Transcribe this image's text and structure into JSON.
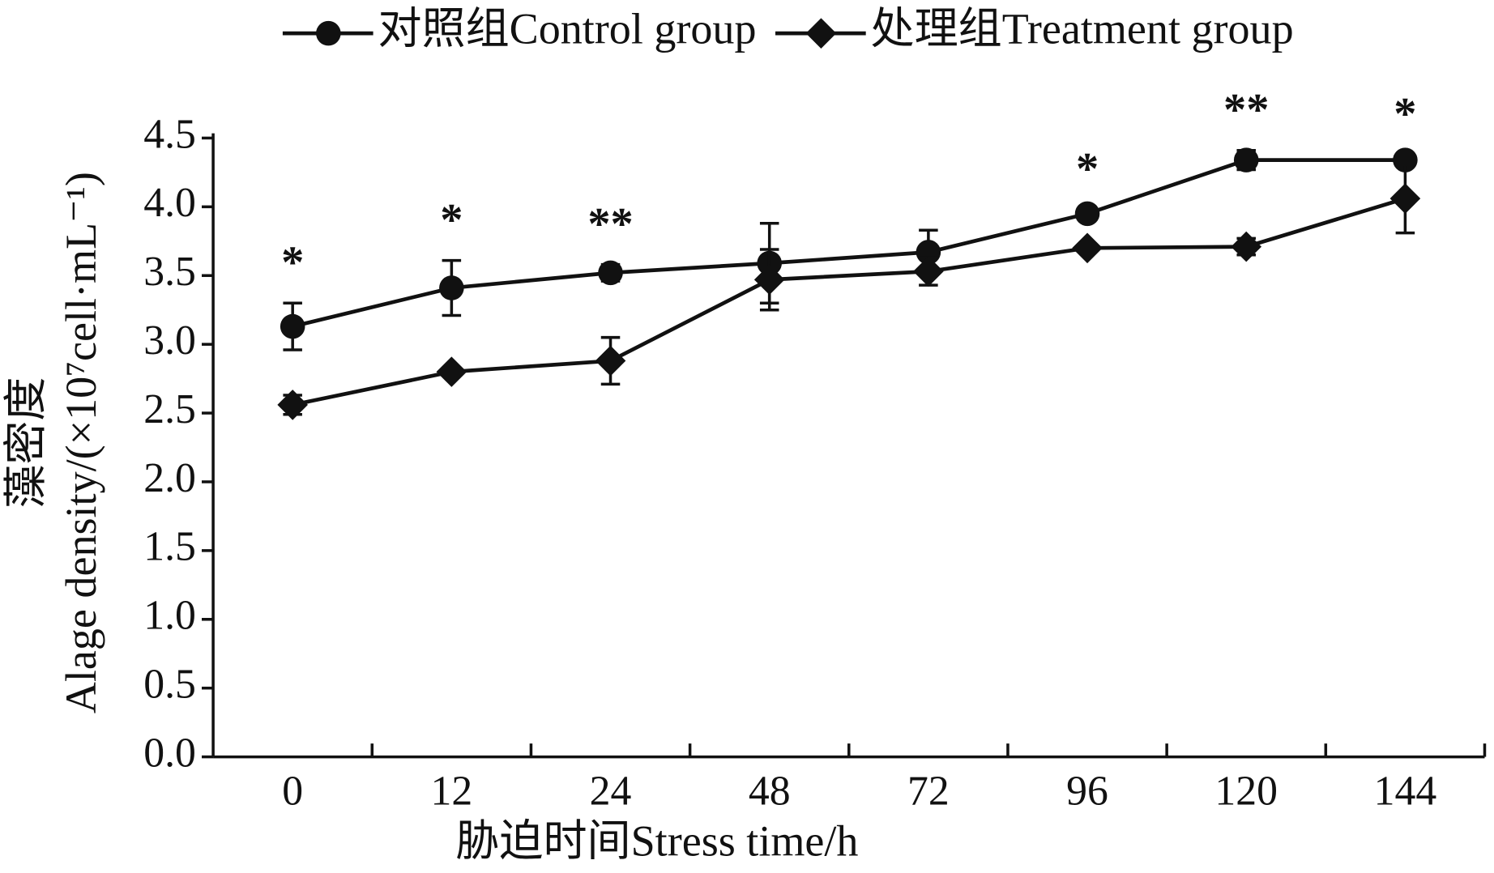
{
  "chart_data": {
    "type": "line",
    "x_label": "胁迫时间Stress time/h",
    "y_label": [
      "Alage density/(×10⁷cell·mL⁻¹)",
      "藻密度"
    ],
    "categories": [
      "0",
      "12",
      "24",
      "48",
      "72",
      "96",
      "120",
      "144"
    ],
    "series": [
      {
        "name": "对照组Control group",
        "color": "#111111",
        "marker": "circle",
        "values": [
          3.13,
          3.41,
          3.52,
          3.59,
          3.67,
          3.95,
          4.34,
          4.34
        ],
        "errors": [
          0.17,
          0.2,
          0.06,
          0.29,
          0.16,
          0.03,
          0.07,
          0.04
        ]
      },
      {
        "name": "处理组Treatment group",
        "color": "#111111",
        "marker": "diamond",
        "values": [
          2.56,
          2.8,
          2.88,
          3.47,
          3.53,
          3.7,
          3.71,
          4.06
        ],
        "errors": [
          0.07,
          0.03,
          0.17,
          0.22,
          0.1,
          0.03,
          0.06,
          0.25
        ]
      }
    ],
    "annotations": [
      "*",
      "*",
      "**",
      null,
      null,
      "*",
      "**",
      "*"
    ],
    "ylim": [
      0,
      4.5
    ],
    "yticks": [
      {
        "value": 0,
        "label": "0.0"
      },
      0.5,
      {
        "value": 1,
        "label": "1.0"
      },
      1.5,
      {
        "value": 2,
        "label": "2.0"
      },
      2.5,
      {
        "value": 3,
        "label": "3.0"
      },
      3.5,
      {
        "value": 4,
        "label": "4.0"
      },
      4.5
    ],
    "legend": "top"
  }
}
